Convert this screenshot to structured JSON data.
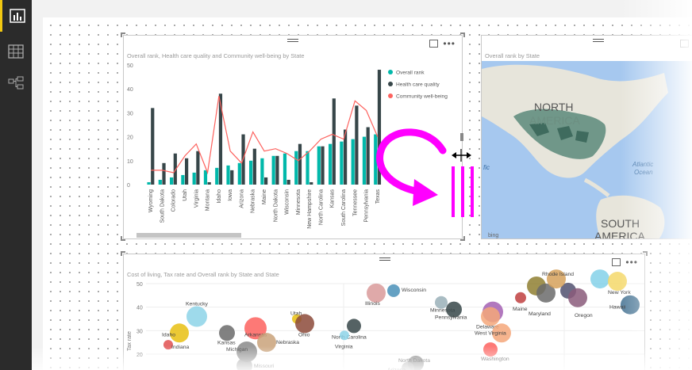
{
  "nav": {
    "items": [
      {
        "name": "report-view",
        "icon": "bar-chart-icon",
        "active": true
      },
      {
        "name": "data-view",
        "icon": "table-icon",
        "active": false
      },
      {
        "name": "relationships-view",
        "icon": "relationships-icon",
        "active": false
      }
    ]
  },
  "colors": {
    "teal": "#01b8aa",
    "dark": "#374649",
    "red": "#fd625e",
    "accent": "#f2c811",
    "magenta": "#ff00ff"
  },
  "column_chart": {
    "title": "Overall rank, Health care quality and Community well-being by State",
    "chart_data": {
      "type": "bar",
      "title": "Overall rank, Health care quality and Community well-being by State",
      "ylim": [
        0,
        50
      ],
      "yticks": [
        "0",
        "10",
        "20",
        "30",
        "40",
        "50"
      ],
      "categories": [
        "Wyoming",
        "South Dakota",
        "Colorado",
        "Utah",
        "Virginia",
        "Montana",
        "Idaho",
        "Iowa",
        "Arizona",
        "Nebraska",
        "Maine",
        "North Dakota",
        "Wisconsin",
        "Minnesota",
        "New Hampshire",
        "North Carolina",
        "Kansas",
        "South Carolina",
        "Tennessee",
        "Pennsylvania",
        "Texas"
      ],
      "series": [
        {
          "name": "Overall rank",
          "values": [
            1,
            2,
            3,
            4,
            5,
            6,
            7,
            8,
            9,
            10,
            11,
            12,
            13,
            14,
            14,
            16,
            17,
            18,
            19,
            20,
            21
          ]
        },
        {
          "name": "Health care quality",
          "values": [
            32,
            9,
            13,
            11,
            14,
            1,
            38,
            6,
            21,
            15,
            3,
            12,
            2,
            17,
            1,
            16,
            36,
            23,
            33,
            24,
            48
          ]
        },
        {
          "name": "Community well-being",
          "values": [
            6,
            6,
            5,
            12,
            17,
            5,
            37,
            14,
            9,
            22,
            14,
            15,
            13,
            10,
            14,
            19,
            21,
            19,
            35,
            31,
            20
          ]
        }
      ],
      "legend_position": "top-right"
    }
  },
  "map": {
    "title": "Overall rank by State",
    "labels": {
      "north_america": "NORTH AMERICA",
      "south_america": "SOUTH AMERICA",
      "ocean": "Atlantic Ocean",
      "pacific": "fic",
      "brand": "bing"
    }
  },
  "scatter_chart": {
    "title": "Cost of living, Tax rate and Overall rank by State and State",
    "chart_data": {
      "type": "scatter",
      "title": "Cost of living, Tax rate and Overall rank by State and State",
      "ylabel": "Tax rate",
      "ylim": [
        20,
        50
      ],
      "yticks": [
        "20",
        "30",
        "40",
        "50"
      ],
      "labels": [
        "Wisconsin",
        "Illinois",
        "Kentucky",
        "Minnesota",
        "Pennsylvania",
        "Idaho",
        "Indiana",
        "Utah",
        "Kansas",
        "Arkansas",
        "Michigan",
        "Nebraska",
        "Ohio",
        "North Carolina",
        "Virginia",
        "North Dakota",
        "Arizona",
        "Missouri",
        "Delaware",
        "West Virginia",
        "Maryland",
        "Maine",
        "Washington",
        "Oregon",
        "Rhode Island",
        "New York",
        "Hawaii"
      ]
    }
  }
}
